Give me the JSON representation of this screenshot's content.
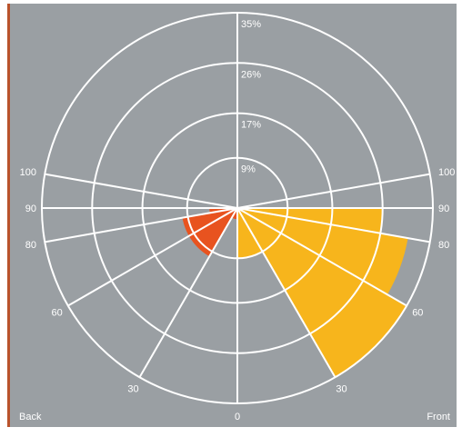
{
  "chart_data": {
    "type": "polar-rose",
    "r_ticks": [
      "9%",
      "17%",
      "26%",
      "35%"
    ],
    "r_values": [
      9,
      17,
      26,
      35
    ],
    "r_max": 35,
    "angle_labels_left": [
      "100",
      "90",
      "80",
      "60",
      "30"
    ],
    "angle_labels_right": [
      "100",
      "90",
      "80",
      "60",
      "30"
    ],
    "angle_label_bottom": "0",
    "corner_labels": {
      "left": "Back",
      "right": "Front"
    },
    "colors": {
      "front": "#f7b51c",
      "back": "#e8531f",
      "grid": "#ffffff",
      "background": "#9a9fa3"
    },
    "series": [
      {
        "side": "front",
        "sectors": [
          {
            "angle_from": 0,
            "angle_to": 30,
            "value": 9
          },
          {
            "angle_from": 30,
            "angle_to": 60,
            "value": 35
          },
          {
            "angle_from": 60,
            "angle_to": 80,
            "value": 31
          },
          {
            "angle_from": 80,
            "angle_to": 90,
            "value": 26
          }
        ]
      },
      {
        "side": "back",
        "sectors": [
          {
            "angle_from": 0,
            "angle_to": 30,
            "value": 2
          },
          {
            "angle_from": 30,
            "angle_to": 60,
            "value": 10
          },
          {
            "angle_from": 60,
            "angle_to": 80,
            "value": 10
          },
          {
            "angle_from": 80,
            "angle_to": 90,
            "value": 5
          }
        ]
      }
    ]
  }
}
